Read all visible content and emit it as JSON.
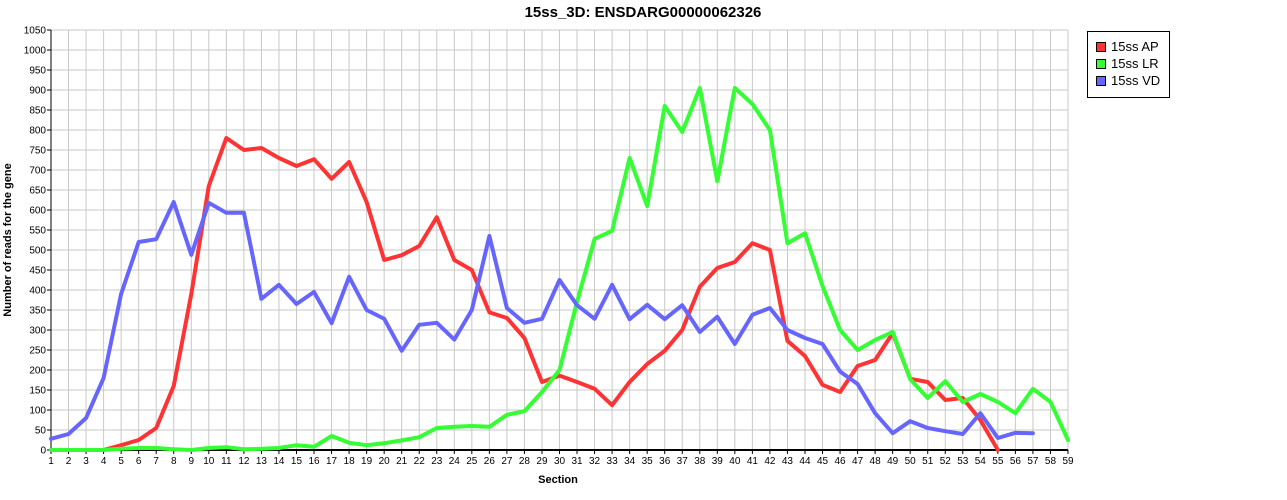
{
  "chart_data": {
    "type": "line",
    "title": "15ss_3D: ENSDARG00000062326",
    "xlabel": "Section",
    "ylabel": "Number of reads for the gene",
    "xlim": [
      1,
      59
    ],
    "ylim": [
      0,
      1050
    ],
    "yticks": [
      0,
      50,
      100,
      150,
      200,
      250,
      300,
      350,
      400,
      450,
      500,
      550,
      600,
      650,
      700,
      750,
      800,
      850,
      900,
      950,
      1000,
      1050
    ],
    "xticks": [
      1,
      2,
      3,
      4,
      5,
      6,
      7,
      8,
      9,
      10,
      11,
      12,
      13,
      14,
      15,
      16,
      17,
      18,
      19,
      20,
      21,
      22,
      23,
      24,
      25,
      26,
      27,
      28,
      29,
      30,
      31,
      32,
      33,
      34,
      35,
      36,
      37,
      38,
      39,
      40,
      41,
      42,
      43,
      44,
      45,
      46,
      47,
      48,
      49,
      50,
      51,
      52,
      53,
      54,
      55,
      56,
      57,
      58,
      59
    ],
    "grid": true,
    "legend_position": "top-right, outside plot",
    "series": [
      {
        "name": "15ss AP",
        "color": "#ff3333",
        "x": [
          1,
          2,
          3,
          4,
          5,
          6,
          7,
          8,
          9,
          10,
          11,
          12,
          13,
          14,
          15,
          16,
          17,
          18,
          19,
          20,
          21,
          22,
          23,
          24,
          25,
          26,
          27,
          28,
          29,
          30,
          31,
          32,
          33,
          34,
          35,
          36,
          37,
          38,
          39,
          40,
          41,
          42,
          43,
          44,
          45,
          46,
          47,
          48,
          49,
          50,
          51,
          52,
          53,
          54,
          55
        ],
        "values": [
          0,
          0,
          0,
          0,
          12,
          25,
          55,
          160,
          390,
          660,
          780,
          750,
          755,
          730,
          710,
          727,
          678,
          720,
          620,
          475,
          487,
          510,
          582,
          475,
          450,
          344,
          330,
          280,
          170,
          186,
          170,
          153,
          112,
          170,
          215,
          248,
          300,
          408,
          455,
          470,
          517,
          500,
          273,
          235,
          163,
          145,
          210,
          225,
          292,
          178,
          170,
          125,
          130,
          75,
          0
        ]
      },
      {
        "name": "15ss LR",
        "color": "#33ff33",
        "x": [
          1,
          2,
          3,
          4,
          5,
          6,
          7,
          8,
          9,
          10,
          11,
          12,
          13,
          14,
          15,
          16,
          17,
          18,
          19,
          20,
          21,
          22,
          23,
          24,
          25,
          26,
          27,
          28,
          29,
          30,
          31,
          32,
          33,
          34,
          35,
          36,
          37,
          38,
          39,
          40,
          41,
          42,
          43,
          44,
          45,
          46,
          47,
          48,
          49,
          50,
          51,
          52,
          53,
          54,
          55,
          56,
          57,
          58,
          59
        ],
        "values": [
          0,
          0,
          0,
          0,
          3,
          5,
          5,
          2,
          0,
          5,
          7,
          2,
          3,
          5,
          12,
          8,
          35,
          18,
          12,
          17,
          24,
          32,
          55,
          58,
          60,
          58,
          88,
          97,
          145,
          200,
          370,
          528,
          548,
          730,
          610,
          860,
          795,
          905,
          672,
          905,
          865,
          800,
          517,
          542,
          410,
          300,
          250,
          275,
          295,
          177,
          130,
          172,
          120,
          140,
          120,
          92,
          153,
          120,
          25
        ]
      },
      {
        "name": "15ss VD",
        "color": "#6666ff",
        "x": [
          1,
          2,
          3,
          4,
          5,
          6,
          7,
          8,
          9,
          10,
          11,
          12,
          13,
          14,
          15,
          16,
          17,
          18,
          19,
          20,
          21,
          22,
          23,
          24,
          25,
          26,
          27,
          28,
          29,
          30,
          31,
          32,
          33,
          34,
          35,
          36,
          37,
          38,
          39,
          40,
          41,
          42,
          43,
          44,
          45,
          46,
          47,
          48,
          49,
          50,
          51,
          52,
          53,
          54,
          55,
          56,
          57
        ],
        "values": [
          28,
          40,
          80,
          180,
          390,
          520,
          527,
          620,
          488,
          618,
          593,
          593,
          378,
          413,
          365,
          395,
          317,
          433,
          350,
          328,
          248,
          313,
          318,
          276,
          350,
          535,
          355,
          318,
          328,
          425,
          362,
          328,
          413,
          327,
          363,
          327,
          362,
          295,
          333,
          265,
          338,
          355,
          300,
          280,
          265,
          196,
          165,
          92,
          42,
          72,
          55,
          47,
          40,
          92,
          30,
          43,
          42
        ]
      }
    ]
  }
}
